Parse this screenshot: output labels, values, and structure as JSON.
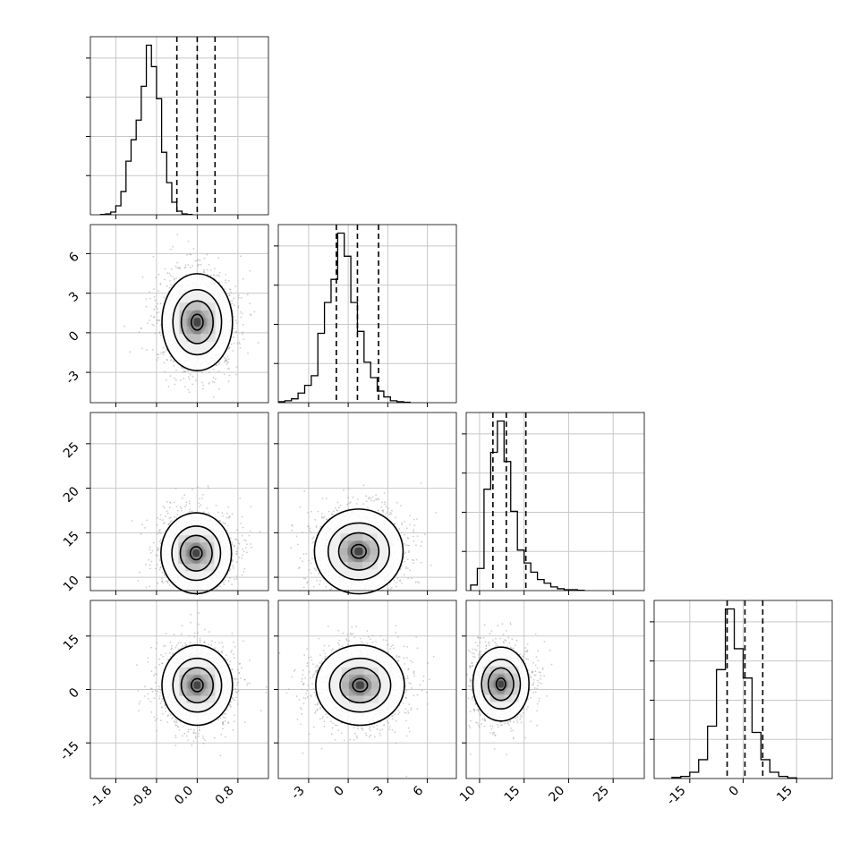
{
  "chart_data": {
    "type": "corner",
    "parameters": [
      {
        "ticks": [
          "-1.6",
          "-0.8",
          "0.0",
          "0.8"
        ],
        "tick_values": [
          -1.6,
          -0.8,
          0.0,
          0.8
        ],
        "range": [
          -2.1,
          1.4
        ],
        "quantiles": [
          -0.4,
          0.0,
          0.35
        ],
        "hist": {
          "start": -1.9,
          "width": 0.1,
          "counts": [
            0.2,
            0.5,
            1.5,
            5,
            13,
            30,
            42,
            53,
            72,
            95,
            83,
            65,
            35,
            18,
            7,
            2,
            0.5,
            0.2
          ]
        }
      },
      {
        "ticks": [
          "-3",
          "0",
          "3",
          "6"
        ],
        "tick_values": [
          -3,
          0,
          3,
          6
        ],
        "range": [
          -5.3,
          8.2
        ],
        "quantiles": [
          -0.9,
          0.7,
          2.3
        ],
        "hist": {
          "start": -5.3,
          "width": 0.5,
          "counts": [
            0.5,
            1,
            2,
            5,
            9,
            14,
            36,
            52,
            64,
            88,
            76,
            52,
            37,
            21,
            13,
            6,
            3,
            1,
            0.5,
            0.2
          ]
        }
      },
      {
        "ticks": [
          "10",
          "15",
          "20",
          "25"
        ],
        "tick_values": [
          10,
          15,
          20,
          25
        ],
        "range": [
          8.5,
          28.5
        ],
        "quantiles": [
          11.5,
          13.0,
          15.2
        ],
        "hist": {
          "start": 9.0,
          "width": 0.75,
          "counts": [
            3,
            12,
            55,
            75,
            92,
            70,
            43,
            22,
            15,
            10,
            6,
            4,
            2,
            1,
            0.5,
            0.5,
            0.2
          ]
        }
      },
      {
        "ticks": [
          "-15",
          "0",
          "15"
        ],
        "tick_values": [
          -15,
          0,
          15
        ],
        "range": [
          -25,
          25
        ],
        "quantiles": [
          -4.5,
          0.5,
          5.5
        ],
        "hist": {
          "start": -20,
          "width": 2.5,
          "counts": [
            0.5,
            1,
            3,
            9,
            25,
            52,
            81,
            62,
            48,
            22,
            9,
            3,
            1,
            0.3
          ]
        }
      }
    ],
    "joint": [
      {
        "row": 1,
        "col": 0,
        "center": [
          0.0,
          0.8
        ],
        "spread": [
          0.33,
          1.7
        ]
      },
      {
        "row": 2,
        "col": 0,
        "center": [
          -0.02,
          12.7
        ],
        "spread": [
          0.33,
          2.1
        ]
      },
      {
        "row": 2,
        "col": 1,
        "center": [
          0.8,
          12.9
        ],
        "spread": [
          1.6,
          2.2
        ]
      },
      {
        "row": 3,
        "col": 0,
        "center": [
          0.0,
          1.2
        ],
        "spread": [
          0.33,
          5.2
        ]
      },
      {
        "row": 3,
        "col": 1,
        "center": [
          0.9,
          1.2
        ],
        "spread": [
          1.6,
          5.2
        ]
      },
      {
        "row": 3,
        "col": 2,
        "center": [
          12.4,
          1.5
        ],
        "spread": [
          1.5,
          4.8
        ]
      }
    ],
    "grid": true,
    "colors": {
      "hist": "#000000",
      "scatter": "#9e9e9e",
      "contour": "#000000",
      "grid": "#c8c8c8"
    }
  }
}
